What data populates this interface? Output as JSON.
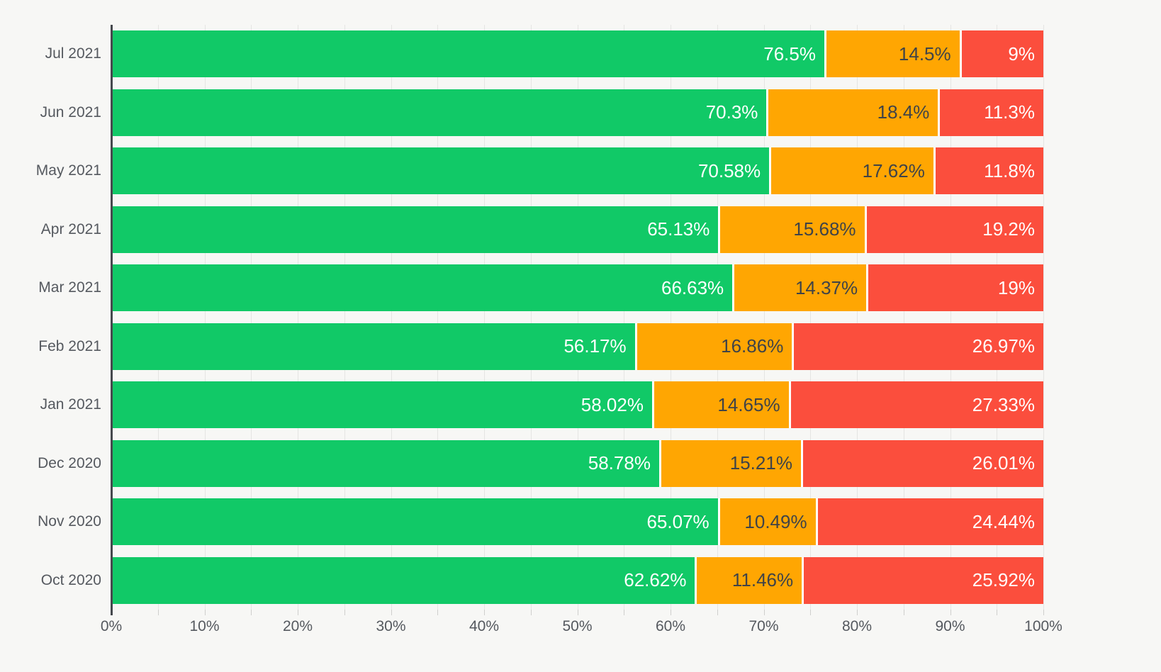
{
  "chart_data": {
    "type": "bar",
    "orientation": "horizontal",
    "stacked": true,
    "title": "",
    "xlabel": "",
    "ylabel": "",
    "grid": true,
    "legend": false,
    "categories": [
      "Jul 2021",
      "Jun 2021",
      "May 2021",
      "Apr 2021",
      "Mar 2021",
      "Feb 2021",
      "Jan 2021",
      "Dec 2020",
      "Nov 2020",
      "Oct 2020"
    ],
    "series": [
      {
        "name": "green-segment",
        "color": "#11C967",
        "label_color": "#ffffff",
        "values": [
          76.5,
          70.3,
          70.58,
          65.13,
          66.63,
          56.17,
          58.02,
          58.78,
          65.07,
          62.62
        ],
        "labels": [
          "76.5%",
          "70.3%",
          "70.58%",
          "65.13%",
          "66.63%",
          "56.17%",
          "58.02%",
          "58.78%",
          "65.07%",
          "62.62%"
        ]
      },
      {
        "name": "orange-segment",
        "color": "#FFA602",
        "label_color": "#3F4348",
        "values": [
          14.5,
          18.4,
          17.62,
          15.68,
          14.37,
          16.86,
          14.65,
          15.21,
          10.49,
          11.46
        ],
        "labels": [
          "14.5%",
          "18.4%",
          "17.62%",
          "15.68%",
          "14.37%",
          "16.86%",
          "14.65%",
          "15.21%",
          "10.49%",
          "11.46%"
        ]
      },
      {
        "name": "red-segment",
        "color": "#FB4E3D",
        "label_color": "#ffffff",
        "values": [
          9,
          11.3,
          11.8,
          19.2,
          19,
          26.97,
          27.33,
          26.01,
          24.44,
          25.92
        ],
        "labels": [
          "9%",
          "11.3%",
          "11.8%",
          "19.2%",
          "19%",
          "26.97%",
          "27.33%",
          "26.01%",
          "24.44%",
          "25.92%"
        ]
      }
    ],
    "x_axis": {
      "min": 0,
      "max": 100,
      "tick_step": 10,
      "minor_step": 5,
      "tick_labels": [
        "0%",
        "10%",
        "20%",
        "30%",
        "40%",
        "50%",
        "60%",
        "70%",
        "80%",
        "90%",
        "100%"
      ]
    },
    "style": {
      "background": "#f7f7f5",
      "gridline_color": "#e5e5e3",
      "axis_line_color": "#45484d",
      "tick_color": "#cfcfcd",
      "axis_text_color": "#55595f",
      "separator_color": "#ffffff"
    }
  }
}
